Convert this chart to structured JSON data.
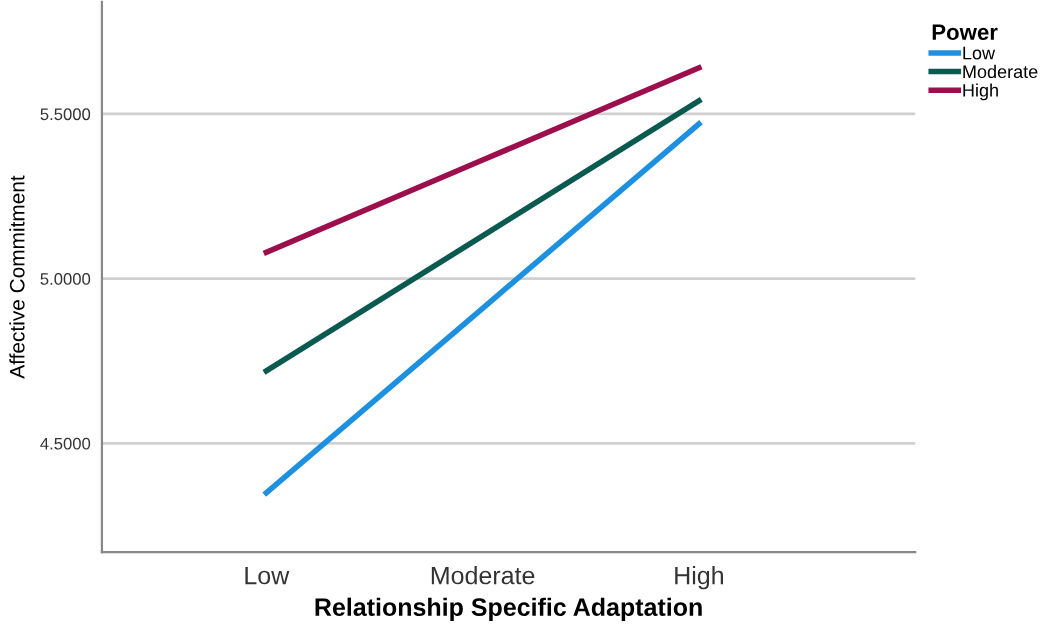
{
  "chart_data": {
    "type": "line",
    "xlabel": "Relationship Specific Adaptation",
    "ylabel": "Affective Commitment",
    "legend_title": "Power",
    "legend": "right",
    "categories": [
      "Low",
      "Moderate",
      "High"
    ],
    "series": [
      {
        "name": "Low",
        "color": "#1e90e0",
        "values": [
          4.35,
          4.91,
          5.47
        ]
      },
      {
        "name": "Moderate",
        "color": "#0b5a50",
        "values": [
          4.72,
          5.13,
          5.54
        ]
      },
      {
        "name": "High",
        "color": "#9c0f4c",
        "values": [
          5.08,
          5.36,
          5.64
        ]
      }
    ],
    "ylim": [
      4.17,
      5.84
    ],
    "yticks": [
      {
        "value": 4.5,
        "label": "4.5000"
      },
      {
        "value": 5.0,
        "label": "5.0000"
      },
      {
        "value": 5.5,
        "label": "5.5000"
      }
    ],
    "grid": "y",
    "marker": "none",
    "line_style": "solid"
  }
}
